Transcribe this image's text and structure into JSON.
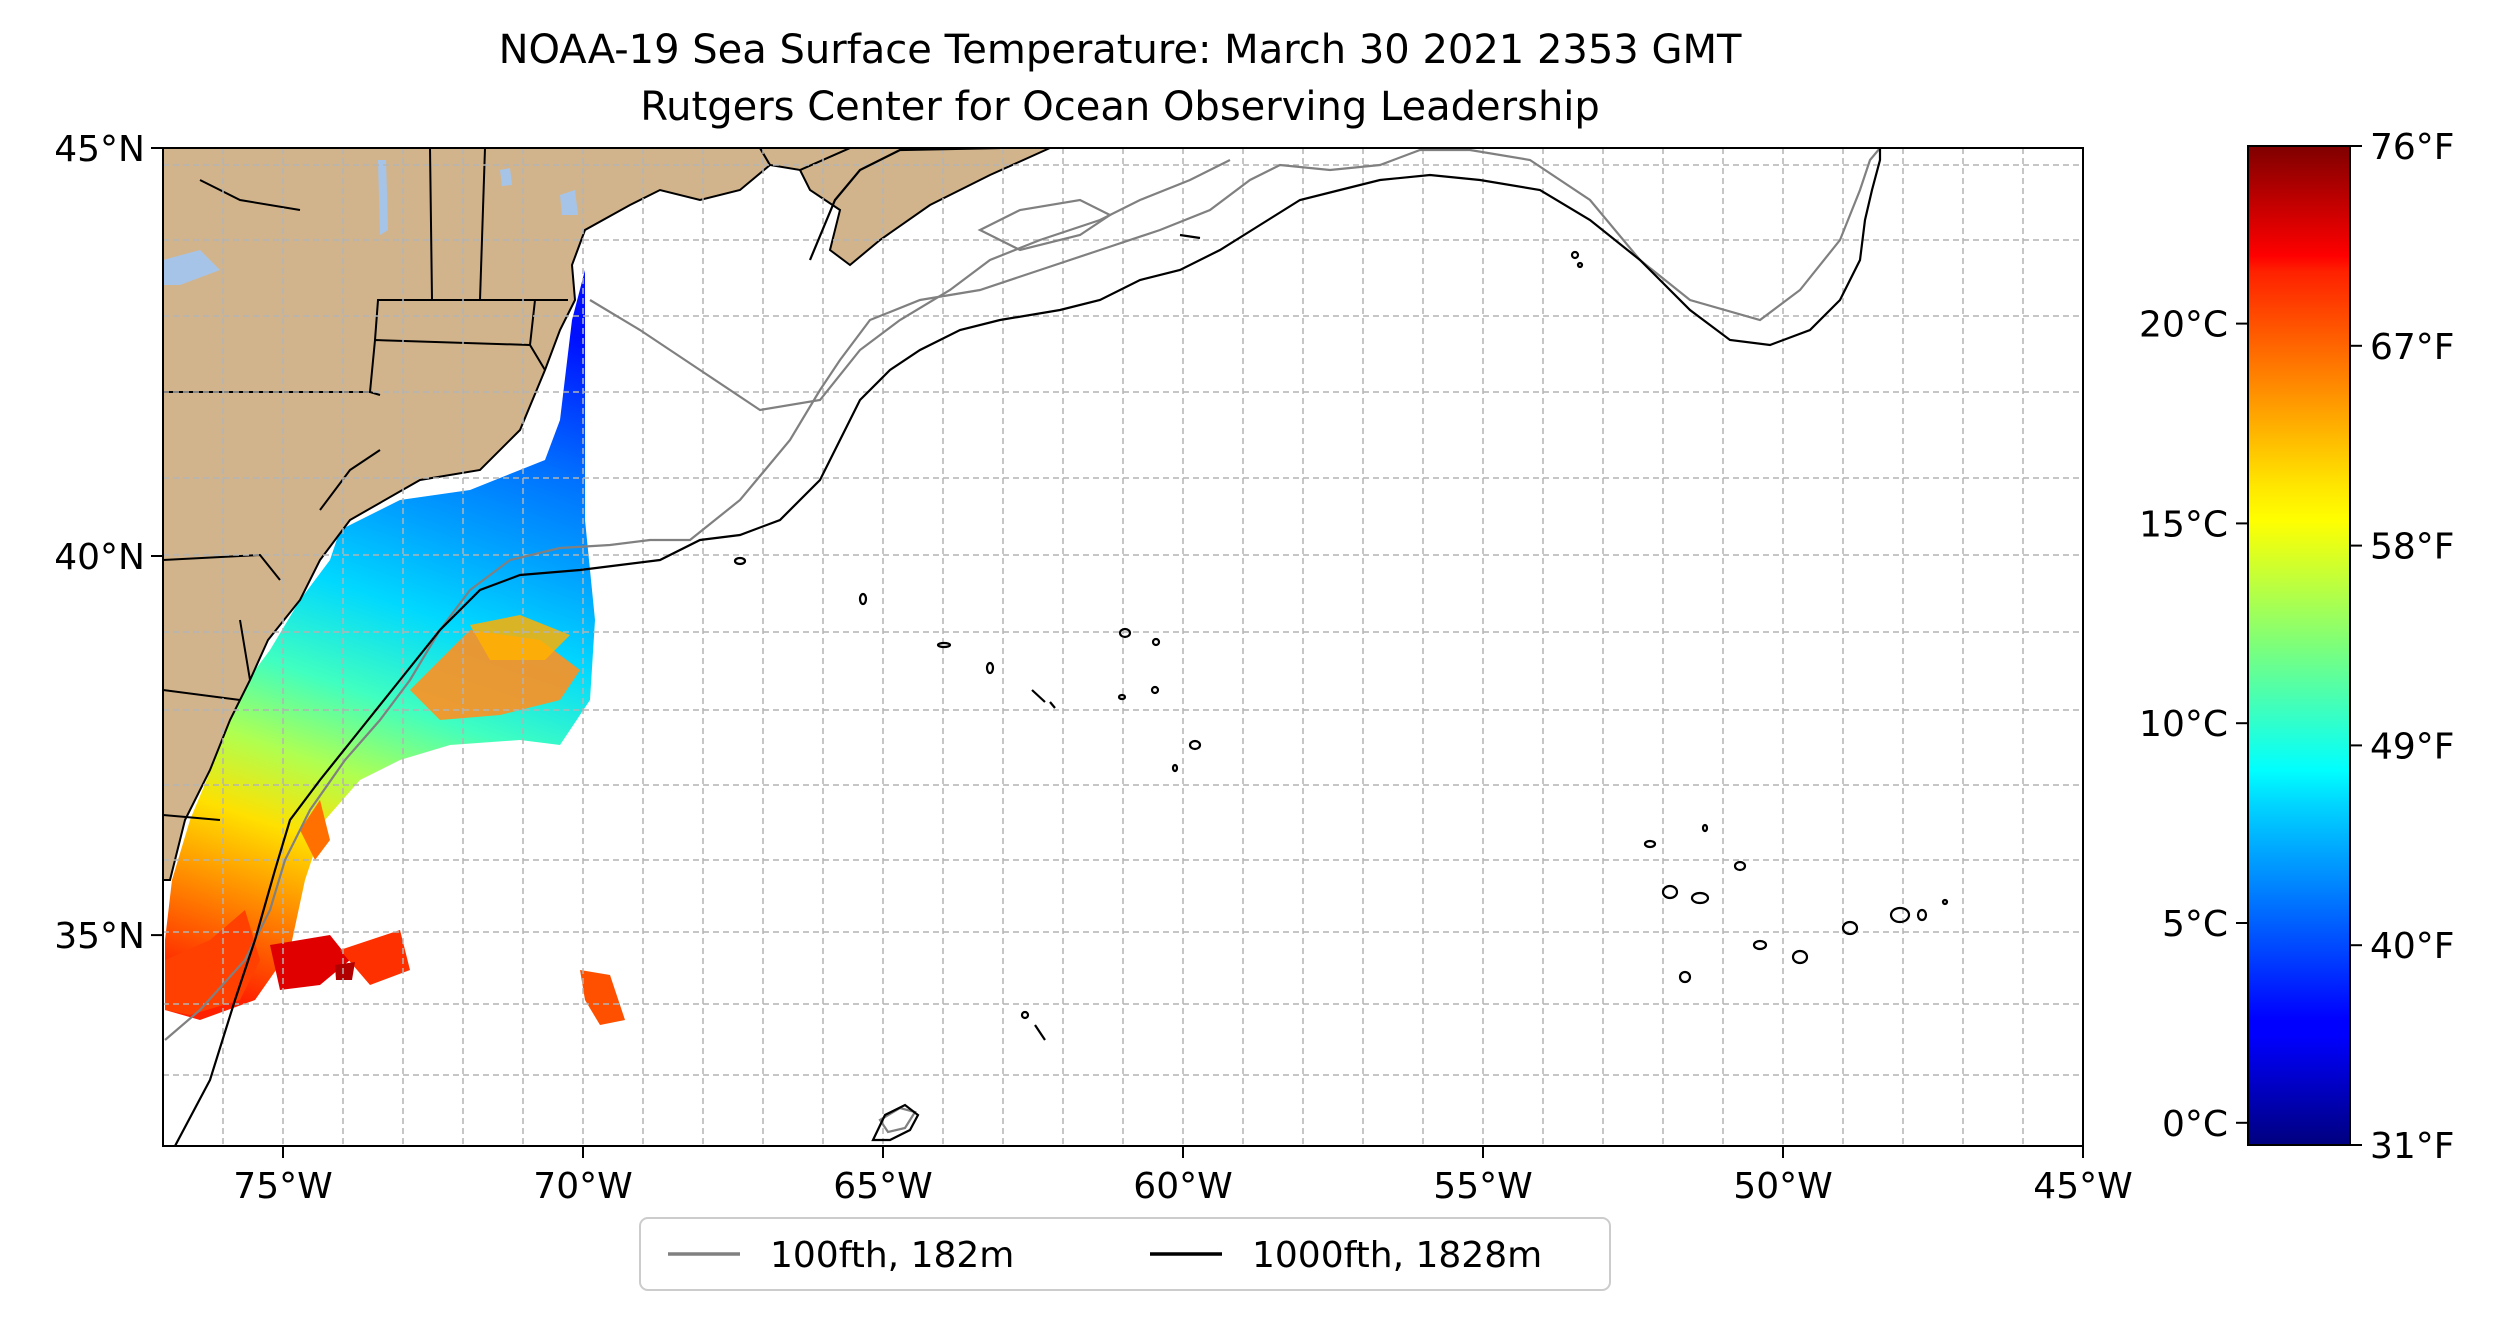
{
  "title": {
    "line1": "NOAA-19 Sea Surface Temperature: March 30 2021 2353 GMT",
    "line2": "Rutgers Center for Ocean Observing Leadership"
  },
  "map": {
    "lon_range": [
      -77,
      -45
    ],
    "lat_range": [
      32.3,
      45
    ],
    "lat_ticks": [
      {
        "value": 45,
        "label": "45°N"
      },
      {
        "value": 40,
        "label": "40°N"
      },
      {
        "value": 35,
        "label": "35°N"
      }
    ],
    "lon_ticks": [
      {
        "value": -75,
        "label": "75°W"
      },
      {
        "value": -70,
        "label": "70°W"
      },
      {
        "value": -65,
        "label": "65°W"
      },
      {
        "value": -60,
        "label": "60°W"
      },
      {
        "value": -55,
        "label": "55°W"
      },
      {
        "value": -50,
        "label": "50°W"
      },
      {
        "value": -45,
        "label": "45°W"
      }
    ],
    "land_color": "#d2b48c",
    "lake_color": "#a6c4e8",
    "grid": true
  },
  "legend": {
    "placement": "bottom-center",
    "items": [
      {
        "label": "100fth, 182m",
        "color": "#808080"
      },
      {
        "label": "1000fth, 1828m",
        "color": "#000000"
      }
    ]
  },
  "colorbar": {
    "colormap": "jet",
    "celsius_ticks": [
      {
        "value": 0,
        "label": "0°C"
      },
      {
        "value": 5,
        "label": "5°C"
      },
      {
        "value": 10,
        "label": "10°C"
      },
      {
        "value": 15,
        "label": "15°C"
      },
      {
        "value": 20,
        "label": "20°C"
      }
    ],
    "fahrenheit_ticks": [
      {
        "value": 31,
        "label": "31°F"
      },
      {
        "value": 40,
        "label": "40°F"
      },
      {
        "value": 49,
        "label": "49°F"
      },
      {
        "value": 58,
        "label": "58°F"
      },
      {
        "value": 67,
        "label": "67°F"
      },
      {
        "value": 76,
        "label": "76°F"
      }
    ]
  }
}
